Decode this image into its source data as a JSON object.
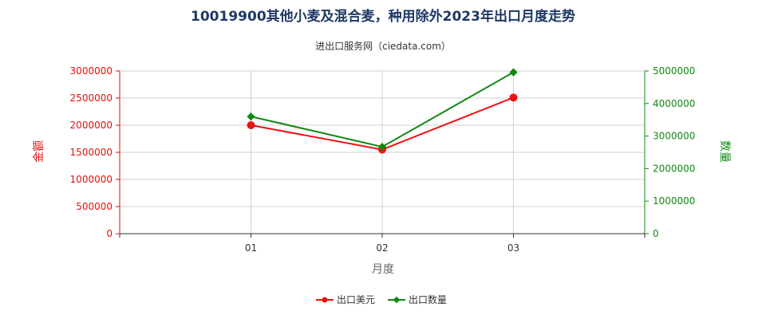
{
  "chart_data": {
    "type": "line",
    "title": "10019900其他小麦及混合麦，种用除外2023年出口月度走势",
    "subtitle": "进出口服务网（ciedata.com）",
    "xlabel": "月度",
    "categories": [
      "01",
      "02",
      "03"
    ],
    "y_left": {
      "label": "金额",
      "min": 0,
      "max": 3000000,
      "ticks": [
        0,
        500000,
        1000000,
        1500000,
        2000000,
        2500000,
        3000000
      ],
      "tick_labels": [
        "0",
        "500000",
        "1000000",
        "1500000",
        "2000000",
        "2500000",
        "3000000"
      ],
      "color": "#dd1111"
    },
    "y_right": {
      "label": "数量",
      "min": 0,
      "max": 5000000,
      "ticks": [
        0,
        1000000,
        2000000,
        3000000,
        4000000,
        5000000
      ],
      "tick_labels": [
        "0",
        "1000000",
        "2000000",
        "3000000",
        "4000000",
        "5000000"
      ],
      "color": "#118811"
    },
    "series": [
      {
        "name": "出口美元",
        "axis": "left",
        "color": "#ee1111",
        "marker": "circle",
        "values": [
          2000000,
          1550000,
          2510000
        ]
      },
      {
        "name": "出口数量",
        "axis": "right",
        "color": "#118811",
        "marker": "diamond",
        "values": [
          3600000,
          2670000,
          4960000
        ]
      }
    ],
    "grid": true,
    "legend_position": "bottom-center"
  }
}
